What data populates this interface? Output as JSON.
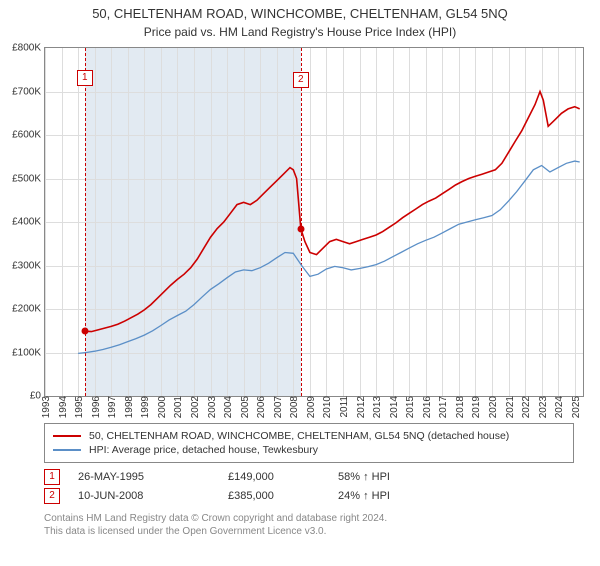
{
  "title": "50, CHELTENHAM ROAD, WINCHCOMBE, CHELTENHAM, GL54 5NQ",
  "subtitle": "Price paid vs. HM Land Registry's House Price Index (HPI)",
  "chart": {
    "type": "line",
    "xlim": [
      1993,
      2025.5
    ],
    "ylim": [
      0,
      800000
    ],
    "ytick_step": 100000,
    "yticks_labels": [
      "£0",
      "£100K",
      "£200K",
      "£300K",
      "£400K",
      "£500K",
      "£600K",
      "£700K",
      "£800K"
    ],
    "xticks": [
      1993,
      1994,
      1995,
      1996,
      1997,
      1998,
      1999,
      2000,
      2001,
      2002,
      2003,
      2004,
      2005,
      2006,
      2007,
      2008,
      2009,
      2010,
      2011,
      2012,
      2013,
      2014,
      2015,
      2016,
      2017,
      2018,
      2019,
      2020,
      2021,
      2022,
      2023,
      2024,
      2025
    ],
    "background_color": "#ffffff",
    "grid_color": "#dddddd",
    "highlight_band": {
      "start": 1995.4,
      "end": 2008.45,
      "color": "#e2eaf2"
    },
    "series": [
      {
        "name": "property",
        "label": "50, CHELTENHAM ROAD, WINCHCOMBE, CHELTENHAM, GL54 5NQ (detached house)",
        "color": "#cc0000",
        "line_width": 1.6,
        "data": [
          [
            1995.4,
            149000
          ],
          [
            1995.8,
            148000
          ],
          [
            1996.2,
            152000
          ],
          [
            1996.6,
            156000
          ],
          [
            1997.0,
            160000
          ],
          [
            1997.4,
            165000
          ],
          [
            1997.8,
            172000
          ],
          [
            1998.2,
            180000
          ],
          [
            1998.6,
            188000
          ],
          [
            1999.0,
            198000
          ],
          [
            1999.4,
            210000
          ],
          [
            1999.8,
            225000
          ],
          [
            2000.2,
            240000
          ],
          [
            2000.6,
            255000
          ],
          [
            2001.0,
            268000
          ],
          [
            2001.4,
            280000
          ],
          [
            2001.8,
            295000
          ],
          [
            2002.2,
            315000
          ],
          [
            2002.6,
            340000
          ],
          [
            2003.0,
            365000
          ],
          [
            2003.4,
            385000
          ],
          [
            2003.8,
            400000
          ],
          [
            2004.2,
            420000
          ],
          [
            2004.6,
            440000
          ],
          [
            2005.0,
            445000
          ],
          [
            2005.4,
            440000
          ],
          [
            2005.8,
            450000
          ],
          [
            2006.2,
            465000
          ],
          [
            2006.6,
            480000
          ],
          [
            2007.0,
            495000
          ],
          [
            2007.4,
            510000
          ],
          [
            2007.8,
            525000
          ],
          [
            2008.0,
            520000
          ],
          [
            2008.2,
            500000
          ],
          [
            2008.45,
            385000
          ],
          [
            2008.7,
            355000
          ],
          [
            2009.0,
            330000
          ],
          [
            2009.4,
            325000
          ],
          [
            2009.8,
            340000
          ],
          [
            2010.2,
            355000
          ],
          [
            2010.6,
            360000
          ],
          [
            2011.0,
            355000
          ],
          [
            2011.4,
            350000
          ],
          [
            2011.8,
            355000
          ],
          [
            2012.2,
            360000
          ],
          [
            2012.6,
            365000
          ],
          [
            2013.0,
            370000
          ],
          [
            2013.4,
            378000
          ],
          [
            2013.8,
            388000
          ],
          [
            2014.2,
            398000
          ],
          [
            2014.6,
            410000
          ],
          [
            2015.0,
            420000
          ],
          [
            2015.4,
            430000
          ],
          [
            2015.8,
            440000
          ],
          [
            2016.2,
            448000
          ],
          [
            2016.6,
            455000
          ],
          [
            2017.0,
            465000
          ],
          [
            2017.4,
            475000
          ],
          [
            2017.8,
            485000
          ],
          [
            2018.2,
            493000
          ],
          [
            2018.6,
            500000
          ],
          [
            2019.0,
            505000
          ],
          [
            2019.4,
            510000
          ],
          [
            2019.8,
            515000
          ],
          [
            2020.2,
            520000
          ],
          [
            2020.6,
            535000
          ],
          [
            2021.0,
            560000
          ],
          [
            2021.4,
            585000
          ],
          [
            2021.8,
            610000
          ],
          [
            2022.2,
            640000
          ],
          [
            2022.6,
            670000
          ],
          [
            2022.9,
            700000
          ],
          [
            2023.1,
            680000
          ],
          [
            2023.4,
            620000
          ],
          [
            2023.8,
            635000
          ],
          [
            2024.2,
            650000
          ],
          [
            2024.6,
            660000
          ],
          [
            2025.0,
            665000
          ],
          [
            2025.3,
            660000
          ]
        ]
      },
      {
        "name": "hpi",
        "label": "HPI: Average price, detached house, Tewkesbury",
        "color": "#5b8fc7",
        "line_width": 1.3,
        "data": [
          [
            1995.0,
            98000
          ],
          [
            1995.5,
            100000
          ],
          [
            1996.0,
            103000
          ],
          [
            1996.5,
            107000
          ],
          [
            1997.0,
            112000
          ],
          [
            1997.5,
            118000
          ],
          [
            1998.0,
            125000
          ],
          [
            1998.5,
            132000
          ],
          [
            1999.0,
            140000
          ],
          [
            1999.5,
            150000
          ],
          [
            2000.0,
            162000
          ],
          [
            2000.5,
            175000
          ],
          [
            2001.0,
            185000
          ],
          [
            2001.5,
            195000
          ],
          [
            2002.0,
            210000
          ],
          [
            2002.5,
            228000
          ],
          [
            2003.0,
            245000
          ],
          [
            2003.5,
            258000
          ],
          [
            2004.0,
            272000
          ],
          [
            2004.5,
            285000
          ],
          [
            2005.0,
            290000
          ],
          [
            2005.5,
            288000
          ],
          [
            2006.0,
            295000
          ],
          [
            2006.5,
            305000
          ],
          [
            2007.0,
            318000
          ],
          [
            2007.5,
            330000
          ],
          [
            2008.0,
            328000
          ],
          [
            2008.5,
            300000
          ],
          [
            2009.0,
            275000
          ],
          [
            2009.5,
            280000
          ],
          [
            2010.0,
            292000
          ],
          [
            2010.5,
            298000
          ],
          [
            2011.0,
            295000
          ],
          [
            2011.5,
            290000
          ],
          [
            2012.0,
            293000
          ],
          [
            2012.5,
            297000
          ],
          [
            2013.0,
            302000
          ],
          [
            2013.5,
            310000
          ],
          [
            2014.0,
            320000
          ],
          [
            2014.5,
            330000
          ],
          [
            2015.0,
            340000
          ],
          [
            2015.5,
            350000
          ],
          [
            2016.0,
            358000
          ],
          [
            2016.5,
            365000
          ],
          [
            2017.0,
            375000
          ],
          [
            2017.5,
            385000
          ],
          [
            2018.0,
            395000
          ],
          [
            2018.5,
            400000
          ],
          [
            2019.0,
            405000
          ],
          [
            2019.5,
            410000
          ],
          [
            2020.0,
            415000
          ],
          [
            2020.5,
            428000
          ],
          [
            2021.0,
            448000
          ],
          [
            2021.5,
            470000
          ],
          [
            2022.0,
            495000
          ],
          [
            2022.5,
            520000
          ],
          [
            2023.0,
            530000
          ],
          [
            2023.5,
            515000
          ],
          [
            2024.0,
            525000
          ],
          [
            2024.5,
            535000
          ],
          [
            2025.0,
            540000
          ],
          [
            2025.3,
            538000
          ]
        ]
      }
    ],
    "markers": [
      {
        "id": "1",
        "x": 1995.4,
        "y": 149000,
        "dot_color": "#cc0000"
      },
      {
        "id": "2",
        "x": 2008.45,
        "y": 385000,
        "dot_color": "#cc0000"
      }
    ]
  },
  "legend": {
    "items": [
      {
        "color": "#cc0000",
        "label": "50, CHELTENHAM ROAD, WINCHCOMBE, CHELTENHAM, GL54 5NQ (detached house)"
      },
      {
        "color": "#5b8fc7",
        "label": "HPI: Average price, detached house, Tewkesbury"
      }
    ]
  },
  "sales": [
    {
      "id": "1",
      "date": "26-MAY-1995",
      "price": "£149,000",
      "hpi": "58% ↑ HPI"
    },
    {
      "id": "2",
      "date": "10-JUN-2008",
      "price": "£385,000",
      "hpi": "24% ↑ HPI"
    }
  ],
  "footer": {
    "line1": "Contains HM Land Registry data © Crown copyright and database right 2024.",
    "line2": "This data is licensed under the Open Government Licence v3.0."
  }
}
